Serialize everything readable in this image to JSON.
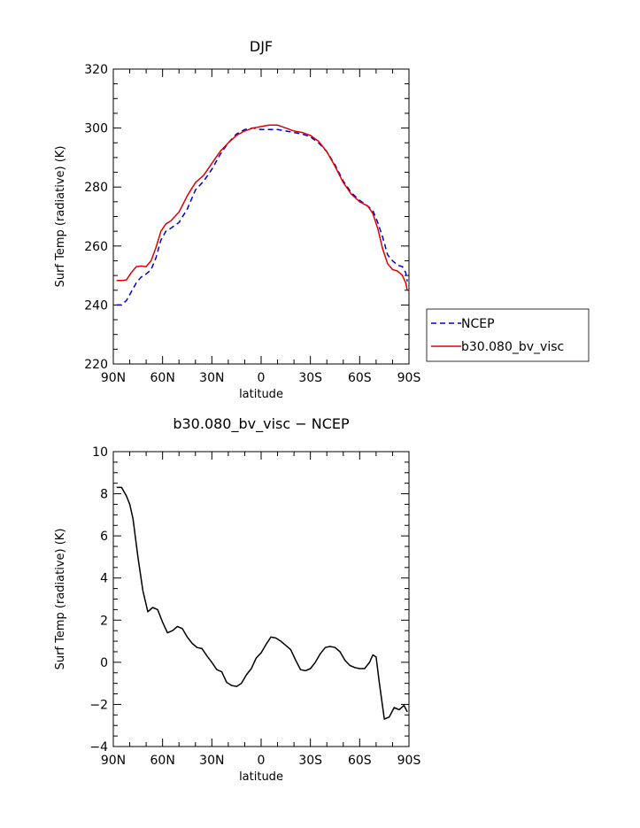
{
  "chart_data": [
    {
      "type": "line",
      "title": "DJF",
      "xlabel": "latitude",
      "ylabel": "Surf Temp (radiative) (K)",
      "xlim": [
        90,
        -90
      ],
      "ylim": [
        220,
        320
      ],
      "xticks": [
        90,
        60,
        30,
        0,
        -30,
        -60,
        -90
      ],
      "xtick_labels": [
        "90N",
        "60N",
        "30N",
        "0",
        "30S",
        "60S",
        "90S"
      ],
      "yticks": [
        220,
        240,
        260,
        280,
        300,
        320
      ],
      "ytick_labels": [
        "220",
        "240",
        "260",
        "280",
        "300",
        "320"
      ],
      "grid": false,
      "legend": "right",
      "series": [
        {
          "name": "NCEP",
          "color": "#0000cc",
          "dash": true,
          "x": [
            88,
            85,
            82,
            79,
            76,
            73,
            70,
            67,
            64,
            61,
            58,
            55,
            50,
            45,
            40,
            35,
            30,
            25,
            20,
            15,
            10,
            5,
            0,
            -5,
            -10,
            -15,
            -20,
            -25,
            -30,
            -35,
            -40,
            -45,
            -50,
            -55,
            -60,
            -65,
            -68,
            -71,
            -74,
            -77,
            -80,
            -83,
            -86,
            -88,
            -89
          ],
          "y": [
            240,
            240,
            241.5,
            244.5,
            247.5,
            249.5,
            250.5,
            252,
            256,
            262,
            265,
            266,
            268,
            272.5,
            279,
            282,
            286,
            291,
            295,
            298,
            299.5,
            300,
            299.5,
            299.5,
            299.5,
            299,
            298.5,
            298,
            297,
            295,
            292,
            287.5,
            282,
            278,
            275.5,
            273.5,
            272,
            268,
            263,
            257,
            255,
            253.5,
            253,
            251,
            248
          ]
        },
        {
          "name": "b30.080_bv_visc",
          "color": "#e00000",
          "dash": false,
          "x": [
            88,
            85,
            82,
            79,
            76,
            73,
            70,
            67,
            64,
            61,
            58,
            55,
            50,
            45,
            40,
            35,
            30,
            25,
            20,
            15,
            10,
            5,
            0,
            -5,
            -10,
            -15,
            -20,
            -25,
            -30,
            -35,
            -40,
            -45,
            -50,
            -55,
            -60,
            -65,
            -68,
            -71,
            -74,
            -77,
            -80,
            -83,
            -86,
            -88,
            -89
          ],
          "y": [
            248.3,
            248.3,
            248.5,
            251,
            253,
            253.2,
            253,
            255,
            259.5,
            265,
            267.5,
            268.5,
            271.5,
            277,
            281.5,
            284,
            288,
            292,
            295,
            297.5,
            299,
            300,
            300.5,
            301,
            301,
            300,
            299,
            298.5,
            297.5,
            295.5,
            292,
            287,
            281.5,
            277.5,
            275,
            273.5,
            271,
            266,
            259,
            254,
            252,
            251.5,
            250,
            247.5,
            245
          ]
        }
      ]
    },
    {
      "type": "line",
      "title": "b30.080_bv_visc − NCEP",
      "xlabel": "latitude",
      "ylabel": "Surf Temp (radiative) (K)",
      "xlim": [
        90,
        -90
      ],
      "ylim": [
        -4,
        10
      ],
      "xticks": [
        90,
        60,
        30,
        0,
        -30,
        -60,
        -90
      ],
      "xtick_labels": [
        "90N",
        "60N",
        "30N",
        "0",
        "30S",
        "60S",
        "90S"
      ],
      "yticks": [
        -4,
        -2,
        0,
        2,
        4,
        6,
        8,
        10
      ],
      "ytick_labels": [
        "−4",
        "−2",
        "0",
        "2",
        "4",
        "6",
        "8",
        "10"
      ],
      "grid": false,
      "series": [
        {
          "color": "#000000",
          "dash": false,
          "x": [
            88,
            85,
            82,
            80,
            78,
            75,
            72,
            69,
            66,
            63,
            60,
            57,
            54,
            51,
            48,
            45,
            42,
            39,
            36,
            33,
            30,
            27,
            24,
            21,
            18,
            15,
            12,
            9,
            6,
            3,
            0,
            -3,
            -6,
            -9,
            -12,
            -15,
            -18,
            -21,
            -24,
            -27,
            -30,
            -33,
            -36,
            -39,
            -42,
            -45,
            -48,
            -51,
            -54,
            -57,
            -60,
            -63,
            -66,
            -68,
            -70,
            -72,
            -75,
            -78,
            -81,
            -84,
            -87,
            -89
          ],
          "y": [
            8.3,
            8.3,
            7.9,
            7.5,
            6.8,
            5.0,
            3.4,
            2.4,
            2.6,
            2.5,
            1.9,
            1.4,
            1.5,
            1.7,
            1.6,
            1.2,
            0.9,
            0.7,
            0.65,
            0.3,
            0.0,
            -0.35,
            -0.45,
            -0.95,
            -1.1,
            -1.15,
            -1.0,
            -0.6,
            -0.3,
            0.2,
            0.45,
            0.85,
            1.2,
            1.15,
            1.0,
            0.8,
            0.6,
            0.1,
            -0.35,
            -0.4,
            -0.3,
            0.0,
            0.4,
            0.7,
            0.75,
            0.7,
            0.5,
            0.1,
            -0.15,
            -0.25,
            -0.3,
            -0.3,
            0.0,
            0.35,
            0.25,
            -1.0,
            -2.7,
            -2.6,
            -2.15,
            -2.25,
            -2.05,
            -2.35
          ]
        }
      ]
    }
  ]
}
